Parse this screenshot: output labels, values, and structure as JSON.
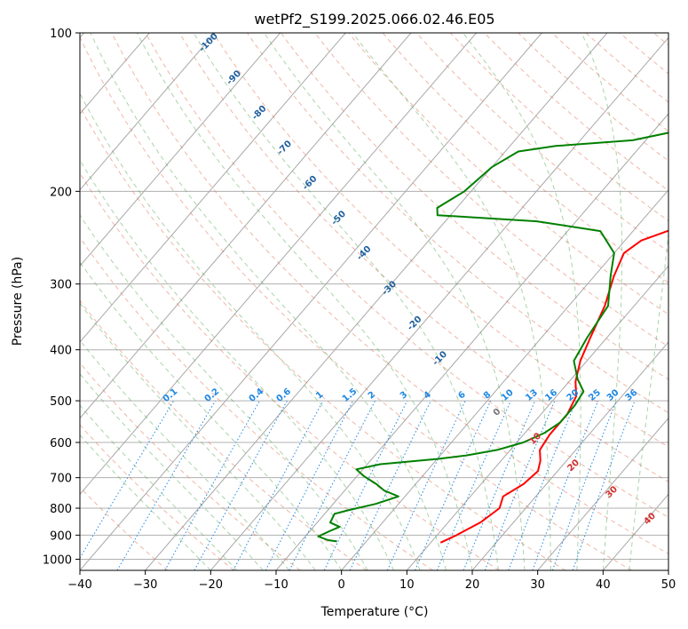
{
  "chart_data": {
    "type": "line",
    "title": "wetPf2_S199.2025.066.02.46.E05",
    "xlabel": "Temperature (°C)",
    "ylabel": "Pressure (hPa)",
    "xlim": [
      -40,
      50
    ],
    "ylim": [
      1050,
      100
    ],
    "y_scale": "log",
    "grid": true,
    "x_ticks": [
      "−40",
      "−30",
      "−20",
      "−10",
      "0",
      "10",
      "20",
      "30",
      "40",
      "50"
    ],
    "y_ticks": [
      "100",
      "200",
      "300",
      "400",
      "500",
      "600",
      "700",
      "800",
      "900",
      "1000"
    ],
    "skew": "skew-T",
    "dry_adiabat_labels": [
      "-100",
      "-90",
      "-80",
      "-70",
      "-60",
      "-50",
      "-40",
      "-30",
      "-20",
      "-10"
    ],
    "mixing_ratio_labels": [
      "0.1",
      "0.2",
      "0.4",
      "0.6",
      "1",
      "1.5",
      "2",
      "3",
      "4",
      "6",
      "8",
      "10",
      "13",
      "16",
      "20",
      "25",
      "30",
      "36"
    ],
    "moist_adiabat_labels": [
      "0",
      "10",
      "20",
      "30",
      "40"
    ],
    "colors": {
      "temperature": "#ff0000",
      "dewpoint": "#008000",
      "dry_adiabat": "#e07050",
      "moist_adiabat": "#55aa55",
      "mixing_ratio": "#1e88e5",
      "isotherm": "#888888",
      "dry_label": "#1f5f9e",
      "moist_label": "#d32f2f"
    },
    "series": [
      {
        "role": "temperature",
        "points": [
          [
            11.5,
            930
          ],
          [
            13,
            900
          ],
          [
            15,
            850
          ],
          [
            16,
            800
          ],
          [
            15,
            760
          ],
          [
            16.5,
            720
          ],
          [
            17,
            680
          ],
          [
            16,
            650
          ],
          [
            14.5,
            620
          ],
          [
            14,
            580
          ],
          [
            14,
            530
          ],
          [
            13,
            490
          ],
          [
            11,
            460
          ],
          [
            9,
            420
          ],
          [
            7.5,
            380
          ],
          [
            5.5,
            330
          ],
          [
            3,
            290
          ],
          [
            1.5,
            262
          ],
          [
            2.5,
            248
          ],
          [
            7,
            232
          ],
          [
            11,
            220
          ],
          [
            12,
            205
          ],
          [
            12.4,
            190
          ],
          [
            12.2,
            170
          ],
          [
            11.8,
            155
          ],
          [
            11.8,
            145
          ],
          [
            12.5,
            132
          ],
          [
            12.4,
            120
          ],
          [
            12.2,
            112
          ],
          [
            12.6,
            103
          ],
          [
            12.6,
            100
          ]
        ]
      },
      {
        "role": "dewpoint",
        "points": [
          [
            -4.5,
            925
          ],
          [
            -6,
            920
          ],
          [
            -8,
            905
          ],
          [
            -7,
            885
          ],
          [
            -6,
            868
          ],
          [
            -8,
            852
          ],
          [
            -8.5,
            820
          ],
          [
            -7,
            808
          ],
          [
            -3.5,
            785
          ],
          [
            -1,
            760
          ],
          [
            -4,
            740
          ],
          [
            -6,
            720
          ],
          [
            -9,
            695
          ],
          [
            -11,
            675
          ],
          [
            -8,
            660
          ],
          [
            0,
            645
          ],
          [
            4,
            635
          ],
          [
            8,
            620
          ],
          [
            11,
            600
          ],
          [
            13,
            575
          ],
          [
            14,
            550
          ],
          [
            14,
            510
          ],
          [
            13.5,
            480
          ],
          [
            11,
            455
          ],
          [
            8,
            420
          ],
          [
            7,
            380
          ],
          [
            6,
            330
          ],
          [
            2.5,
            290
          ],
          [
            0,
            262
          ],
          [
            -5,
            238
          ],
          [
            -16,
            228
          ],
          [
            -32,
            222
          ],
          [
            -33,
            215
          ],
          [
            -31,
            200
          ],
          [
            -30,
            180
          ],
          [
            -28,
            168
          ],
          [
            -23,
            164
          ],
          [
            -12,
            160
          ],
          [
            -5,
            152
          ],
          [
            -4,
            140
          ],
          [
            -3,
            125
          ],
          [
            -1,
            112
          ],
          [
            3,
            100
          ]
        ]
      }
    ]
  }
}
